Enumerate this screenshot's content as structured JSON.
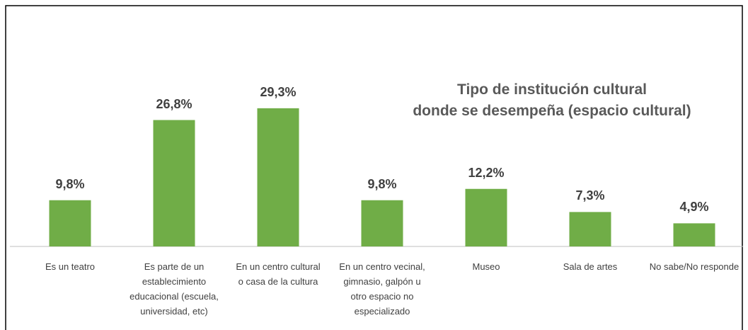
{
  "chart_data": {
    "type": "bar",
    "title": "Tipo de institución cultural\ndonde se desempeña (espacio cultural)",
    "categories": [
      "Es un teatro",
      "Es parte de un\nestablecimiento\neducacional (escuela,\nuniversidad, etc)",
      "En un centro cultural\no casa de la cultura",
      "En un centro vecinal,\ngimnasio, galpón u\notro espacio no\nespecializado",
      "Museo",
      "Sala de artes",
      "No sabe/No responde"
    ],
    "values": [
      9.8,
      26.8,
      29.3,
      9.8,
      12.2,
      7.3,
      4.9
    ],
    "value_labels": [
      "9,8%",
      "26,8%",
      "29,3%",
      "9,8%",
      "12,2%",
      "7,3%",
      "4,9%"
    ],
    "color": "#70ad47"
  }
}
